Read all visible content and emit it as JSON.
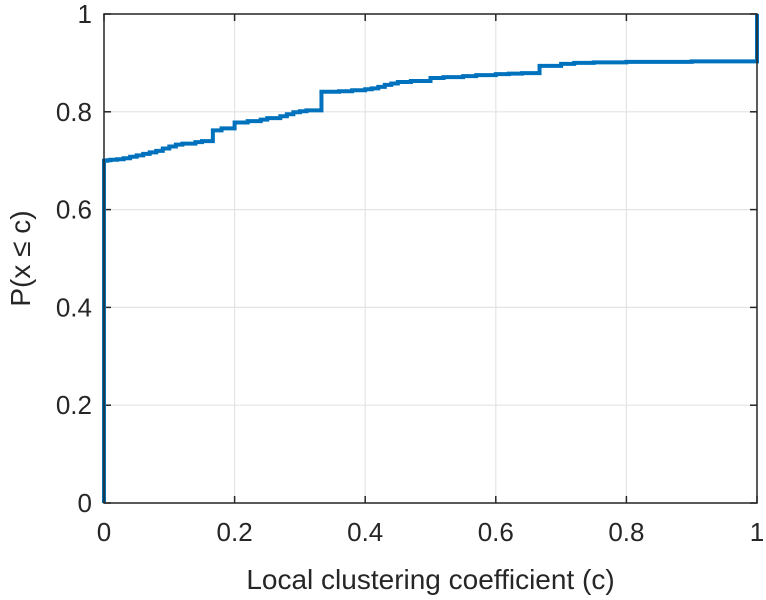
{
  "chart_data": {
    "type": "line",
    "step": true,
    "title": "",
    "xlabel": "Local clustering coefficient (c)",
    "ylabel": "P(x ≤ c)",
    "xlim": [
      0,
      1
    ],
    "ylim": [
      0,
      1
    ],
    "xticks": [
      "0",
      "0.2",
      "0.4",
      "0.6",
      "0.8",
      "1"
    ],
    "yticks": [
      "0",
      "0.2",
      "0.4",
      "0.6",
      "0.8",
      "1"
    ],
    "grid": true,
    "box": true,
    "series": [
      {
        "color": "#0072BD",
        "x": [
          0,
          0,
          0.005,
          0.01,
          0.02,
          0.03,
          0.04,
          0.05,
          0.06,
          0.07,
          0.08,
          0.09,
          0.1,
          0.11,
          0.12,
          0.14,
          0.15,
          0.1667,
          0.1667,
          0.18,
          0.2,
          0.2,
          0.22,
          0.24,
          0.25,
          0.27,
          0.28,
          0.29,
          0.3,
          0.31,
          0.333,
          0.333,
          0.36,
          0.38,
          0.4,
          0.41,
          0.42,
          0.43,
          0.44,
          0.45,
          0.47,
          0.5,
          0.5,
          0.52,
          0.55,
          0.57,
          0.6,
          0.62,
          0.64,
          0.667,
          0.667,
          0.7,
          0.72,
          0.75,
          0.8,
          0.9,
          0.99,
          1,
          1
        ],
        "y": [
          0,
          0.7,
          0.701,
          0.702,
          0.703,
          0.705,
          0.708,
          0.711,
          0.714,
          0.717,
          0.72,
          0.725,
          0.729,
          0.733,
          0.735,
          0.738,
          0.74,
          0.742,
          0.762,
          0.766,
          0.771,
          0.778,
          0.781,
          0.784,
          0.787,
          0.791,
          0.795,
          0.799,
          0.801,
          0.803,
          0.806,
          0.841,
          0.842,
          0.844,
          0.846,
          0.848,
          0.851,
          0.855,
          0.858,
          0.861,
          0.863,
          0.866,
          0.869,
          0.871,
          0.873,
          0.875,
          0.877,
          0.878,
          0.879,
          0.88,
          0.894,
          0.898,
          0.9,
          0.901,
          0.902,
          0.903,
          0.903,
          0.903,
          1
        ]
      }
    ]
  }
}
